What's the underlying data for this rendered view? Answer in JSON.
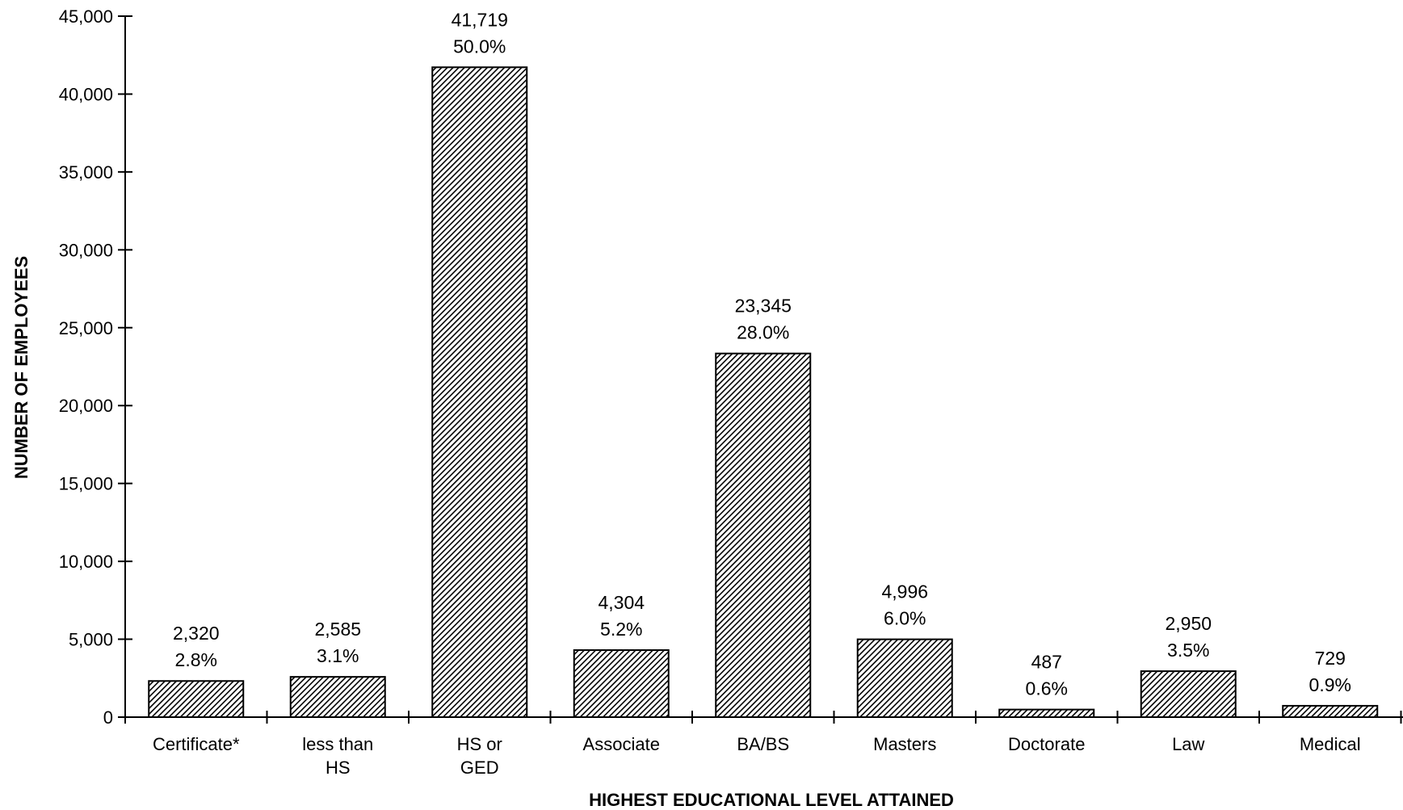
{
  "chart_data": {
    "type": "bar",
    "title": "",
    "xlabel": "HIGHEST EDUCATIONAL LEVEL ATTAINED",
    "ylabel": "NUMBER OF EMPLOYEES",
    "ylim": [
      0,
      45000
    ],
    "yticks": [
      0,
      5000,
      10000,
      15000,
      20000,
      25000,
      30000,
      35000,
      40000,
      45000
    ],
    "ytick_labels": [
      "0",
      "5,000",
      "10,000",
      "15,000",
      "20,000",
      "25,000",
      "30,000",
      "35,000",
      "40,000",
      "45,000"
    ],
    "grid": false,
    "legend": "none",
    "bar_pattern": "diagonal-hatch",
    "categories": [
      [
        "Certificate*"
      ],
      [
        "less than",
        "HS"
      ],
      [
        "HS or",
        "GED"
      ],
      [
        "Associate"
      ],
      [
        "BA/BS"
      ],
      [
        "Masters"
      ],
      [
        "Doctorate"
      ],
      [
        "Law"
      ],
      [
        "Medical"
      ]
    ],
    "values": [
      2320,
      2585,
      41719,
      4304,
      23345,
      4996,
      487,
      2950,
      729
    ],
    "value_labels": [
      "2,320",
      "2,585",
      "41,719",
      "4,304",
      "23,345",
      "4,996",
      "487",
      "2,950",
      "729"
    ],
    "percent_labels": [
      "2.8%",
      "3.1%",
      "50.0%",
      "5.2%",
      "28.0%",
      "6.0%",
      "0.6%",
      "3.5%",
      "0.9%"
    ]
  }
}
